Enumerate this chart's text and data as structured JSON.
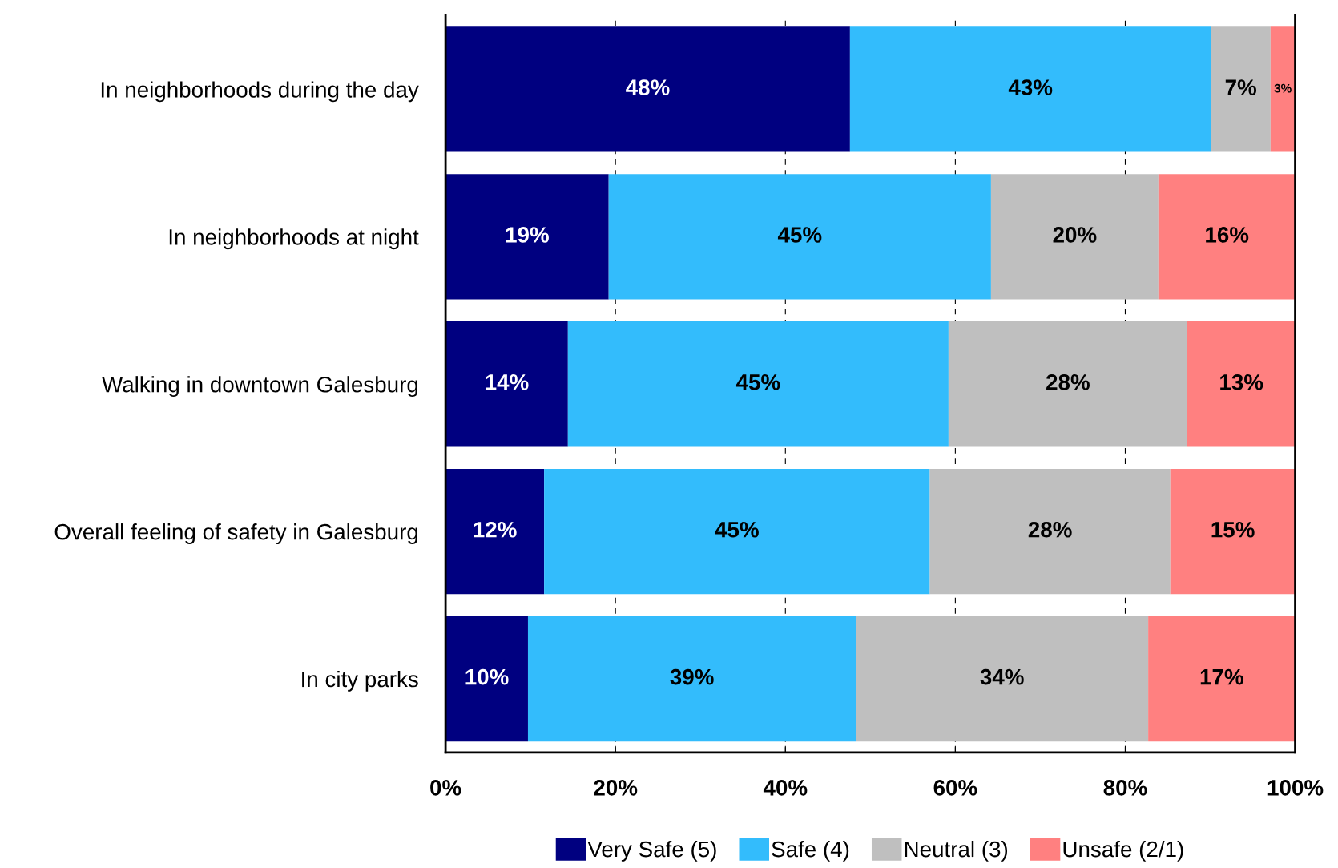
{
  "chart_data": {
    "type": "bar",
    "orientation": "horizontal",
    "stacked": true,
    "categories": [
      "In neighborhoods during the day",
      "In neighborhoods at night",
      "Walking in downtown Galesburg",
      "Overall feeling of safety in Galesburg",
      "In city parks"
    ],
    "series": [
      {
        "name": "Very Safe (5)",
        "color": "#000080",
        "values": [
          47.6,
          19.2,
          14.4,
          11.6,
          9.7
        ],
        "value_labels": [
          "48%",
          "19%",
          "14%",
          "12%",
          "10%"
        ]
      },
      {
        "name": "Safe (4)",
        "color": "#33bcfc",
        "values": [
          42.5,
          45.0,
          44.8,
          45.4,
          38.6
        ],
        "value_labels": [
          "43%",
          "45%",
          "45%",
          "45%",
          "39%"
        ]
      },
      {
        "name": "Neutral (3)",
        "color": "#bfbfbf",
        "values": [
          7.0,
          19.7,
          28.1,
          28.3,
          34.4
        ],
        "value_labels": [
          "7%",
          "20%",
          "28%",
          "28%",
          "34%"
        ]
      },
      {
        "name": "Unsafe (2/1)",
        "color": "#ff8080",
        "values": [
          2.9,
          16.1,
          12.7,
          14.7,
          17.3
        ],
        "value_labels": [
          "3%",
          "16%",
          "13%",
          "15%",
          "17%"
        ]
      }
    ],
    "xlim": [
      0,
      100
    ],
    "xticks": [
      {
        "value": 0,
        "label": "0%"
      },
      {
        "value": 20,
        "label": "20%"
      },
      {
        "value": 40,
        "label": "40%"
      },
      {
        "value": 60,
        "label": "60%"
      },
      {
        "value": 80,
        "label": "80%"
      },
      {
        "value": 100,
        "label": "100%"
      }
    ],
    "grid": "x",
    "legend": "bottom"
  }
}
